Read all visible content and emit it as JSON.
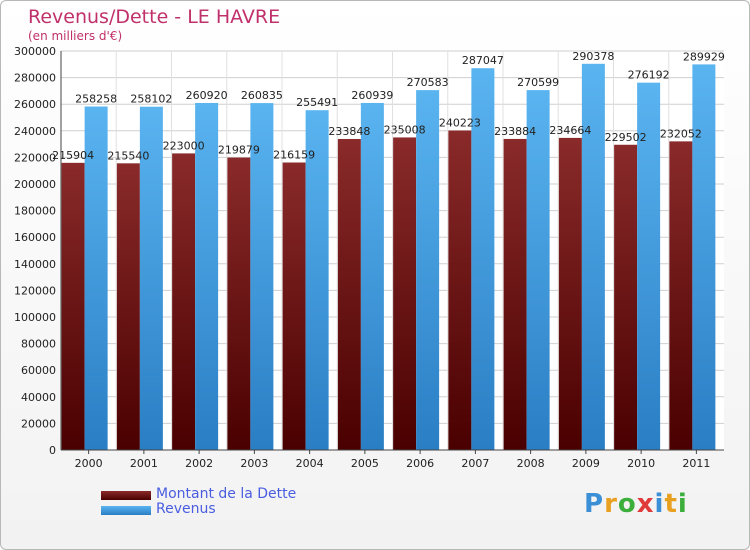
{
  "chart_data": {
    "type": "bar",
    "title": "Revenus/Dette - LE HAVRE",
    "subtitle": "(en milliers d'€)",
    "categories": [
      "2000",
      "2001",
      "2002",
      "2003",
      "2004",
      "2005",
      "2006",
      "2007",
      "2008",
      "2009",
      "2010",
      "2011"
    ],
    "series": [
      {
        "name": "Montant de la Dette",
        "color": "#7a1a1a",
        "values": [
          215904,
          215540,
          223000,
          219879,
          216159,
          233848,
          235008,
          240223,
          233884,
          234664,
          229502,
          232052
        ],
        "labels": [
          "215904",
          "215540",
          "223000",
          "219879",
          "216159",
          "233848",
          "235008",
          "240223",
          "233884",
          "234664",
          "229502",
          "232052"
        ]
      },
      {
        "name": "Revenus",
        "color": "#3d9be0",
        "values": [
          258258,
          258102,
          260920,
          260835,
          255491,
          260939,
          270583,
          287047,
          270599,
          290378,
          276192,
          289929
        ],
        "labels": [
          "258258",
          "258102",
          "260920",
          "260835",
          "255491",
          "260939",
          "270583",
          "287047",
          "270599",
          "290378",
          "276192",
          "289929"
        ]
      }
    ],
    "ylim": [
      0,
      300000
    ],
    "yticks": [
      "0",
      "20000",
      "40000",
      "60000",
      "80000",
      "100000",
      "120000",
      "140000",
      "160000",
      "180000",
      "200000",
      "220000",
      "240000",
      "260000",
      "280000",
      "300000"
    ],
    "grid": true,
    "legend_placement": "bottom-left"
  },
  "logo": {
    "letters": [
      "P",
      "r",
      "o",
      "x",
      "i",
      "t",
      "i"
    ],
    "colors": [
      "#3a8fd6",
      "#e8a020",
      "#3cae3c",
      "#e03a3a",
      "#3a8fd6",
      "#e8a020",
      "#3cae3c"
    ]
  }
}
